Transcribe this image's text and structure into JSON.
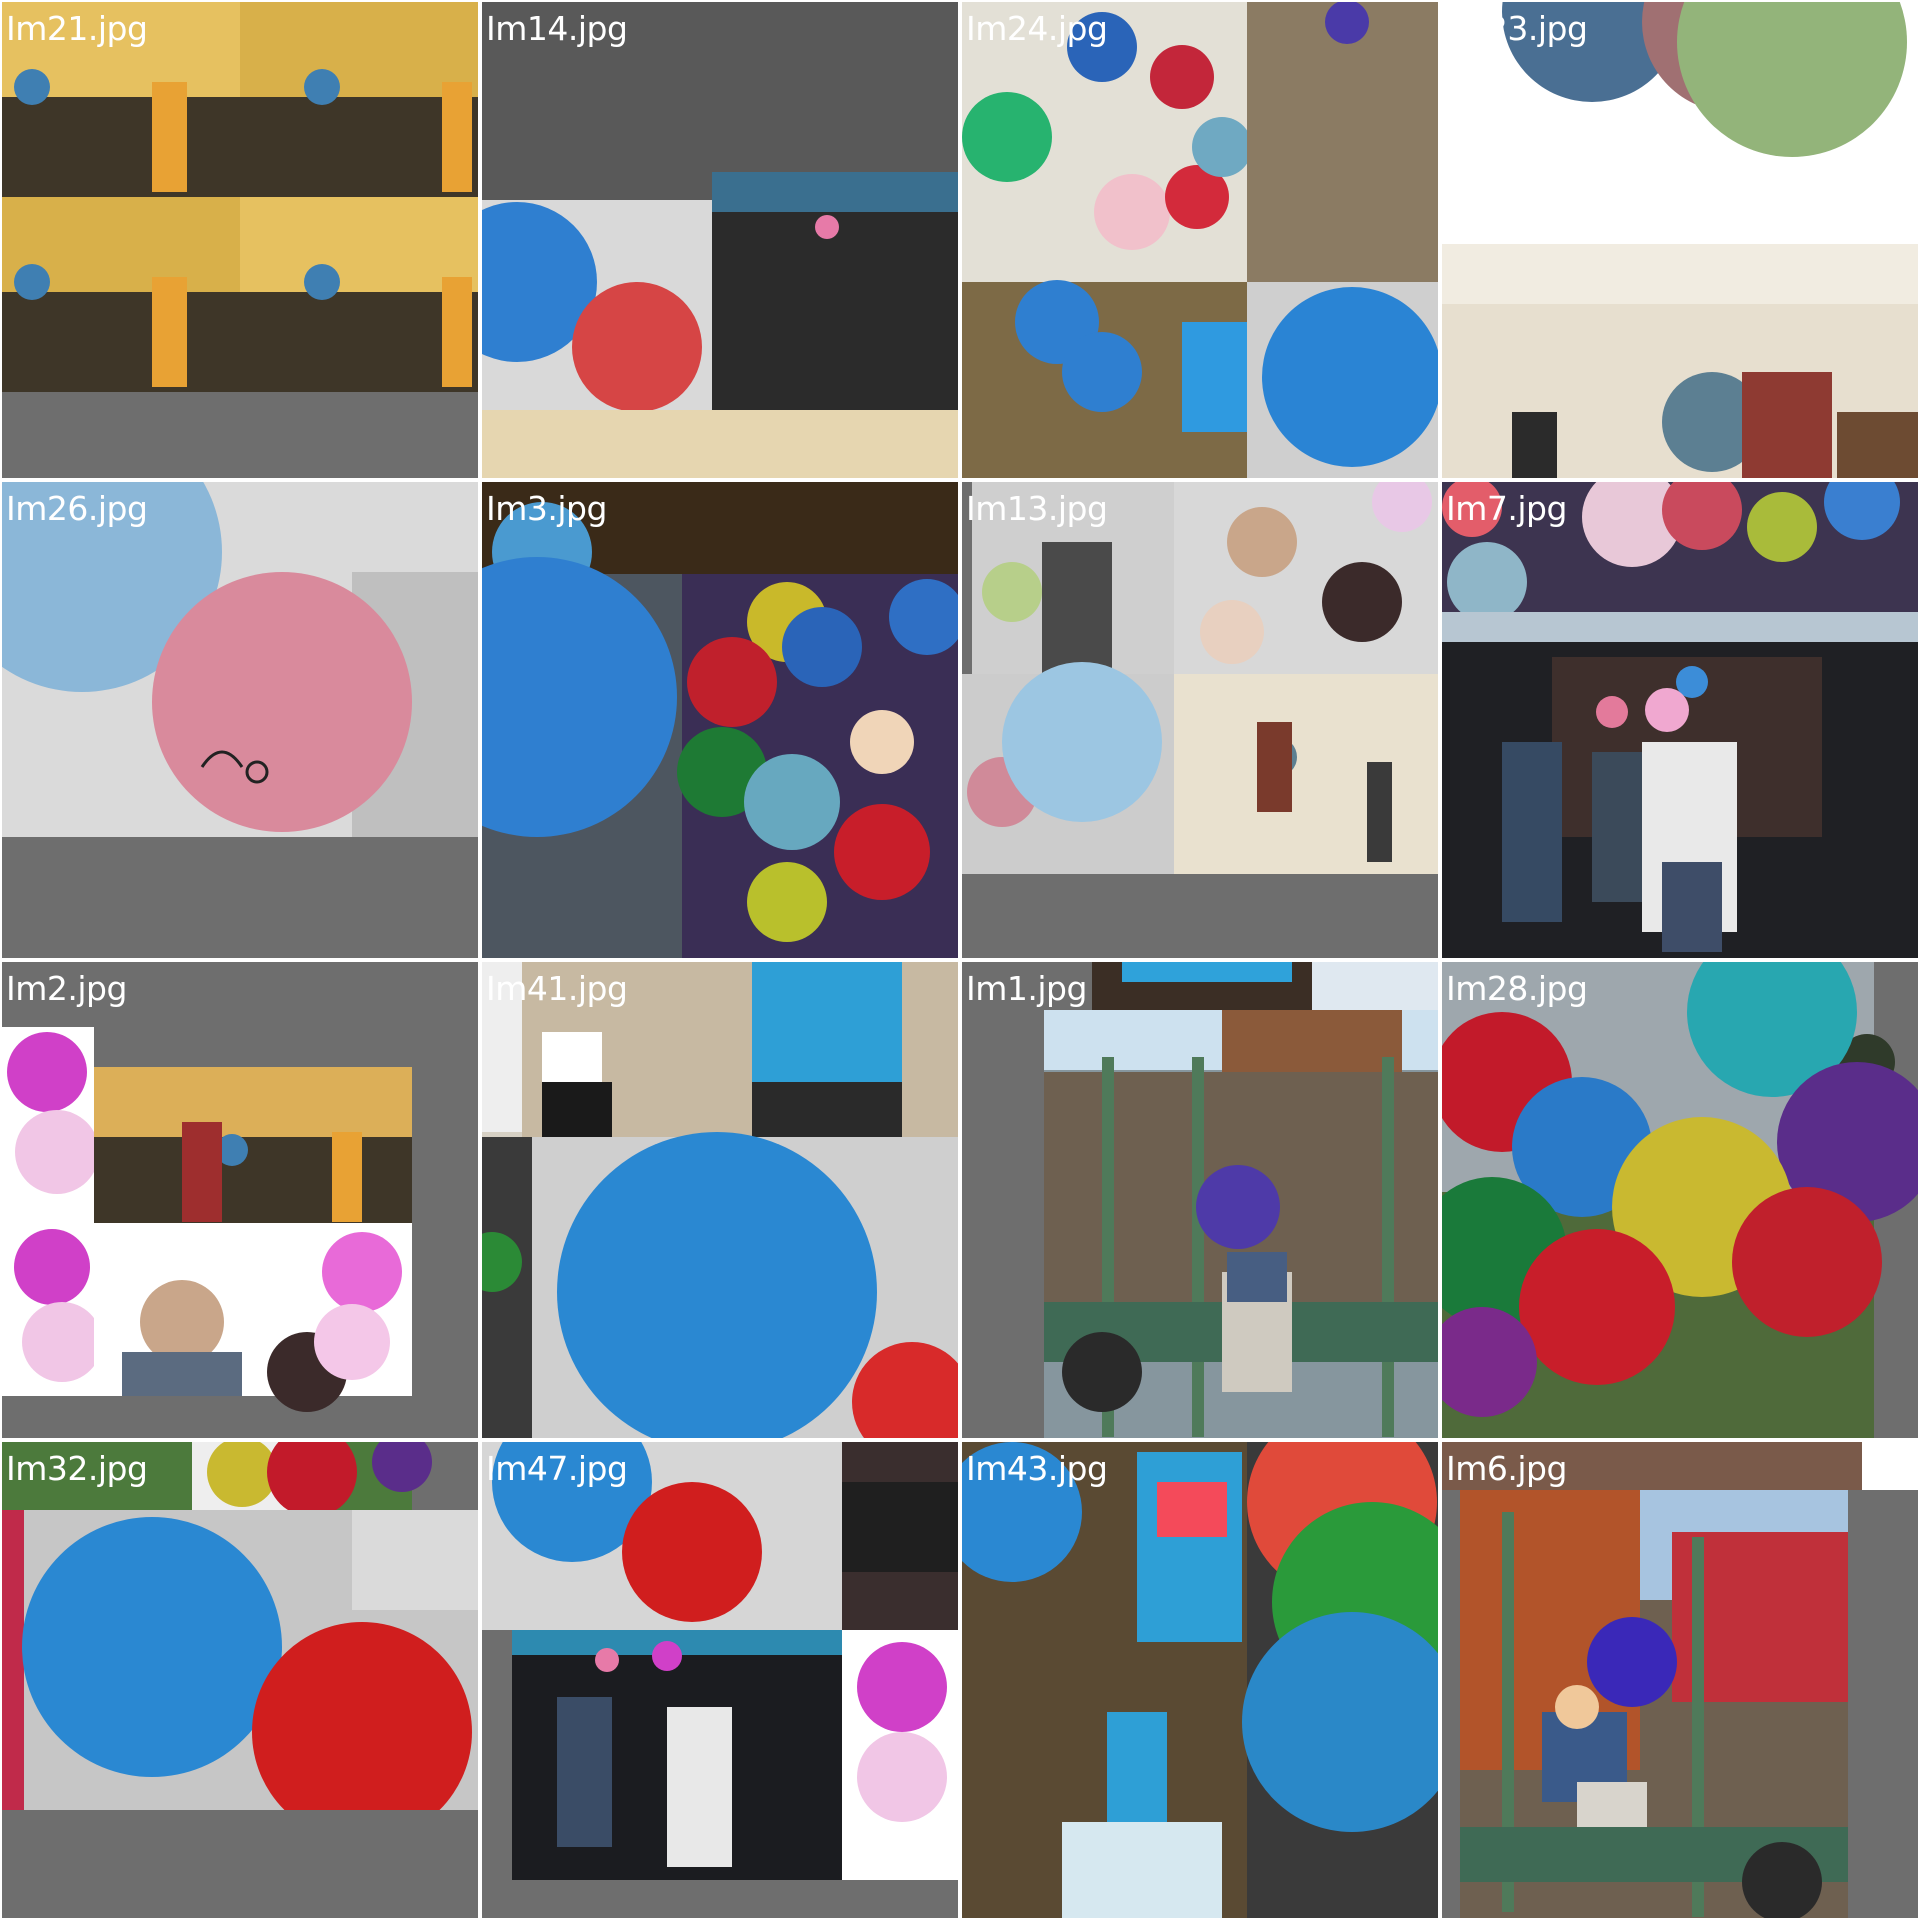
{
  "contact_sheet": {
    "tiles": [
      {
        "label": "Im21.jpg"
      },
      {
        "label": "Im14.jpg"
      },
      {
        "label": "Im24.jpg"
      },
      {
        "label": "Im23.jpg"
      },
      {
        "label": "Im26.jpg"
      },
      {
        "label": "Im3.jpg"
      },
      {
        "label": "Im13.jpg"
      },
      {
        "label": "Im7.jpg"
      },
      {
        "label": "Im2.jpg"
      },
      {
        "label": "Im41.jpg"
      },
      {
        "label": "Im1.jpg"
      },
      {
        "label": "Im28.jpg"
      },
      {
        "label": "Im32.jpg"
      },
      {
        "label": "Im47.jpg"
      },
      {
        "label": "Im43.jpg"
      },
      {
        "label": "Im6.jpg"
      }
    ]
  },
  "colors": {
    "background": "#ffffff",
    "tile_gray": "#6e6e6e",
    "label": "#ffffff"
  }
}
